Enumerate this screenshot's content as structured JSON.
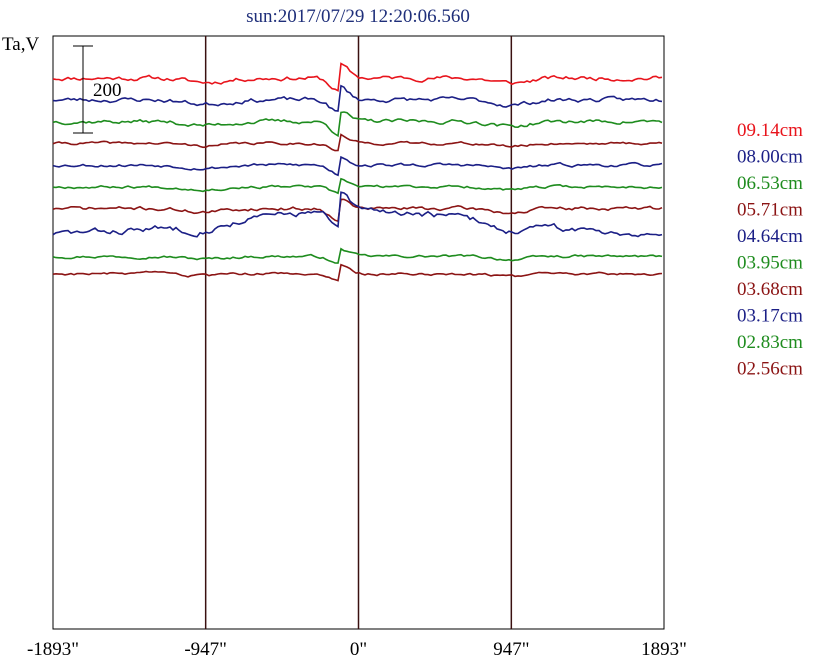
{
  "chart_data": {
    "type": "line",
    "title": "sun:2017/07/29 12:20:06.560",
    "ylabel": "Ta,V",
    "scale_bar_label": "200",
    "scale_bar_value": 200,
    "x_ticks": [
      {
        "value": -1893,
        "label": "-1893\""
      },
      {
        "value": -947,
        "label": "-947\""
      },
      {
        "value": 0,
        "label": "0\""
      },
      {
        "value": 947,
        "label": "947\""
      },
      {
        "value": 1893,
        "label": "1893\""
      }
    ],
    "xlim": [
      -1893,
      1893
    ],
    "vertical_lines_at": [
      -947,
      0,
      947
    ],
    "grid": false,
    "legend_placement": "right",
    "series": [
      {
        "name": "09.14cm",
        "color": "#e8141c",
        "offset": 0,
        "amp": 1.0,
        "seed": 11
      },
      {
        "name": "08.00cm",
        "color": "#1b1f86",
        "offset": -50,
        "amp": 1.0,
        "seed": 23
      },
      {
        "name": "06.53cm",
        "color": "#1e8c1e",
        "offset": -100,
        "amp": 0.9,
        "seed": 37
      },
      {
        "name": "05.71cm",
        "color": "#8b1414",
        "offset": -150,
        "amp": 0.6,
        "seed": 41
      },
      {
        "name": "04.64cm",
        "color": "#1b1f86",
        "offset": -200,
        "amp": 0.7,
        "seed": 53
      },
      {
        "name": "03.95cm",
        "color": "#1e8c1e",
        "offset": -250,
        "amp": 0.6,
        "seed": 67
      },
      {
        "name": "03.68cm",
        "color": "#8b1414",
        "offset": -300,
        "amp": 0.8,
        "seed": 71
      },
      {
        "name": "03.17cm",
        "color": "#1b1f86",
        "offset": -360,
        "amp": 1.4,
        "seed": 83
      },
      {
        "name": "02.83cm",
        "color": "#1e8c1e",
        "offset": -410,
        "amp": 0.6,
        "seed": 97
      },
      {
        "name": "02.56cm",
        "color": "#8b1414",
        "offset": -450,
        "amp": 0.6,
        "seed": 103
      }
    ]
  }
}
